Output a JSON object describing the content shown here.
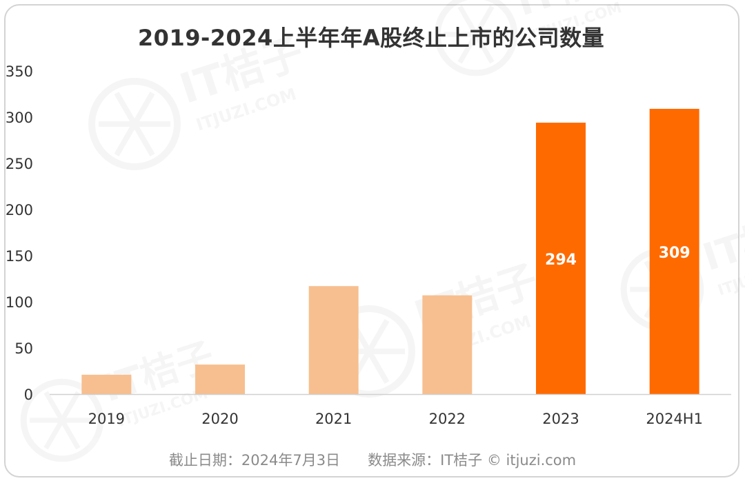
{
  "chart_data": {
    "type": "bar",
    "title": "2019-2024上半年年A股终止上市的公司数量",
    "categories": [
      "2019",
      "2020",
      "2021",
      "2022",
      "2023",
      "2024H1"
    ],
    "values": [
      21,
      32,
      117,
      107,
      294,
      309
    ],
    "data_labels": [
      "",
      "",
      "",
      "",
      "294",
      "309"
    ],
    "ylim": [
      0,
      350
    ],
    "yticks": [
      0,
      50,
      100,
      150,
      200,
      250,
      300,
      350
    ],
    "xlabel": "",
    "ylabel": "",
    "grid": false,
    "legend": "none",
    "colors": {
      "light_bar": "#f7bf8f",
      "highlight_bar": "#ff6a00",
      "label_text": "#ffffff",
      "axis_text": "#333333"
    },
    "highlight_categories": [
      "2023",
      "2024H1"
    ]
  },
  "footer": {
    "date_note": "截止日期：2024年7月3日",
    "source_note": "数据来源：IT桔子 © itjuzi.com"
  },
  "watermark": {
    "brand": "IT桔子",
    "url": "ITJUZI.COM"
  }
}
